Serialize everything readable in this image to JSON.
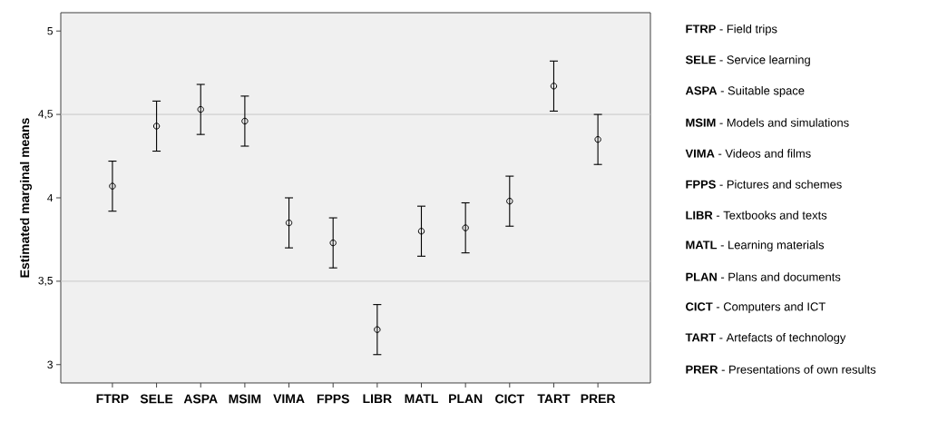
{
  "chart_data": {
    "type": "scatter",
    "ylabel": "Estimated marginal means",
    "categories": [
      "FTRP",
      "SELE",
      "ASPA",
      "MSIM",
      "VIMA",
      "FPPS",
      "LIBR",
      "MATL",
      "PLAN",
      "CICT",
      "TART",
      "PRER"
    ],
    "values": [
      4.07,
      4.43,
      4.53,
      4.46,
      3.85,
      3.73,
      3.21,
      3.8,
      3.82,
      3.98,
      4.67,
      4.35
    ],
    "errors": [
      0.15,
      0.15,
      0.15,
      0.15,
      0.15,
      0.15,
      0.15,
      0.15,
      0.15,
      0.15,
      0.15,
      0.15
    ],
    "color": "#000000",
    "marker": "circle",
    "ylim": [
      2.89,
      5.11
    ],
    "yticks": [
      3,
      {
        "value": 3.5,
        "label": "3,5"
      },
      4,
      {
        "value": 4.5,
        "label": "4,5"
      },
      5
    ],
    "ref_lines": [
      {
        "axis": "y",
        "value": 3.5,
        "color": "#c8c8c8"
      },
      {
        "axis": "y",
        "value": 4.5,
        "color": "#c8c8c8"
      }
    ],
    "annotations": [
      "**FTRP** - Field trips",
      "**SELE** - Service learning",
      "**ASPA** - Suitable space",
      "**MSIM** - Models and simulations",
      "**VIMA** - Videos and films",
      "**FPPS** - Pictures and schemes",
      "**LIBR** - Textbooks and texts",
      "**MATL** - Learning materials",
      "**PLAN** - Plans and documents",
      "**CICT** - Computers and ICT",
      "**TART** - Artefacts of technology",
      "**PRER** - Presentations of own results"
    ]
  }
}
